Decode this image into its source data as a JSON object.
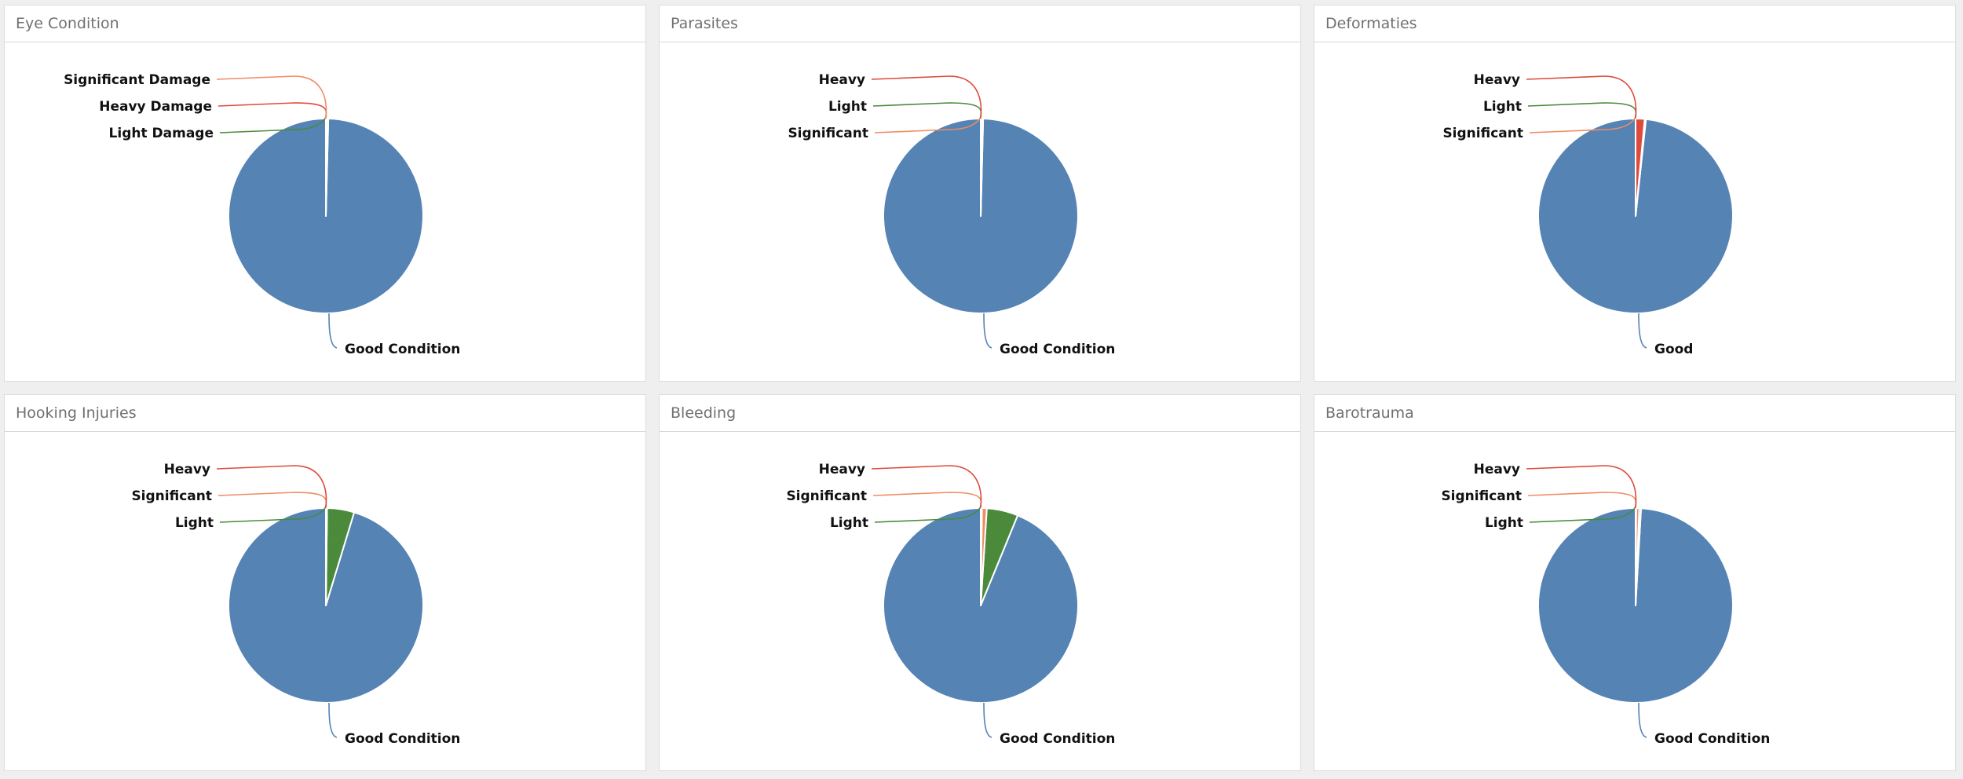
{
  "colors": {
    "good": "#5583b4",
    "light": "#4a8a3a",
    "significant": "#ef8c64",
    "heavy": "#de4a3c"
  },
  "panels": [
    {
      "title": "Eye Condition",
      "chart_data": {
        "type": "pie",
        "slices": [
          {
            "label": "Good Condition",
            "value": 99.6,
            "color_key": "good"
          },
          {
            "label": "Light Damage",
            "value": 0.2,
            "color_key": "light"
          },
          {
            "label": "Heavy Damage",
            "value": 0.1,
            "color_key": "heavy"
          },
          {
            "label": "Significant Damage",
            "value": 0.1,
            "color_key": "significant"
          }
        ]
      }
    },
    {
      "title": "Parasites",
      "chart_data": {
        "type": "pie",
        "slices": [
          {
            "label": "Good Condition",
            "value": 99.6,
            "color_key": "good"
          },
          {
            "label": "Significant",
            "value": 0.1,
            "color_key": "significant"
          },
          {
            "label": "Light",
            "value": 0.2,
            "color_key": "light"
          },
          {
            "label": "Heavy",
            "value": 0.1,
            "color_key": "heavy"
          }
        ]
      }
    },
    {
      "title": "Deformaties",
      "chart_data": {
        "type": "pie",
        "slices": [
          {
            "label": "Good",
            "value": 98.3,
            "color_key": "good"
          },
          {
            "label": "Significant",
            "value": 0.1,
            "color_key": "significant"
          },
          {
            "label": "Light",
            "value": 0.1,
            "color_key": "light"
          },
          {
            "label": "Heavy",
            "value": 1.5,
            "color_key": "heavy"
          }
        ]
      }
    },
    {
      "title": "Hooking Injuries",
      "chart_data": {
        "type": "pie",
        "slices": [
          {
            "label": "Good Condition",
            "value": 95.3,
            "color_key": "good"
          },
          {
            "label": "Light",
            "value": 4.5,
            "color_key": "light"
          },
          {
            "label": "Significant",
            "value": 0.1,
            "color_key": "significant"
          },
          {
            "label": "Heavy",
            "value": 0.1,
            "color_key": "heavy"
          }
        ]
      }
    },
    {
      "title": "Bleeding",
      "chart_data": {
        "type": "pie",
        "slices": [
          {
            "label": "Good Condition",
            "value": 93.8,
            "color_key": "good"
          },
          {
            "label": "Light",
            "value": 5.2,
            "color_key": "light"
          },
          {
            "label": "Significant",
            "value": 0.8,
            "color_key": "significant"
          },
          {
            "label": "Heavy",
            "value": 0.2,
            "color_key": "heavy"
          }
        ]
      }
    },
    {
      "title": "Barotrauma",
      "chart_data": {
        "type": "pie",
        "slices": [
          {
            "label": "Good Condition",
            "value": 99.1,
            "color_key": "good"
          },
          {
            "label": "Light",
            "value": 0.3,
            "color_key": "light"
          },
          {
            "label": "Significant",
            "value": 0.5,
            "color_key": "significant"
          },
          {
            "label": "Heavy",
            "value": 0.1,
            "color_key": "heavy"
          }
        ]
      }
    }
  ]
}
